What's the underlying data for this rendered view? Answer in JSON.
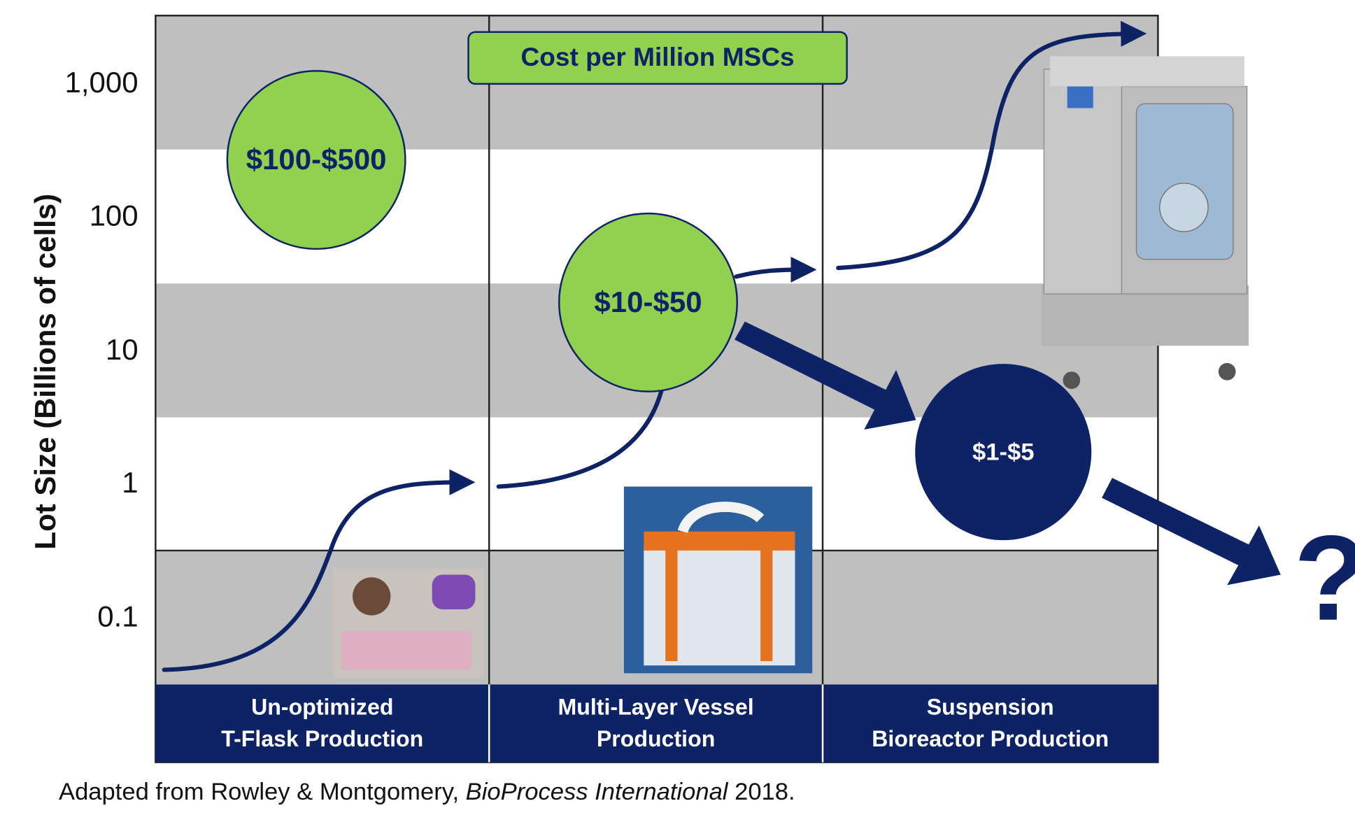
{
  "title": "Cost per Million MSCs",
  "y_axis": {
    "label": "Lot Size (Billions of cells)",
    "ticks": [
      "1,000",
      "100",
      "10",
      "1",
      "0.1"
    ]
  },
  "bubbles": [
    {
      "label": "$100-$500"
    },
    {
      "label": "$10-$50"
    },
    {
      "label": "$1-$5"
    }
  ],
  "columns": [
    {
      "lines": [
        "Un-optimized",
        "T-Flask Production"
      ]
    },
    {
      "lines": [
        "Multi-Layer Vessel",
        "Production"
      ]
    },
    {
      "lines": [
        "Suspension",
        "Bioreactor Production"
      ]
    }
  ],
  "question_mark": "?",
  "caption": {
    "prefix": "Adapted from Rowley & Montgomery, ",
    "journal": "BioProcess International",
    "suffix": " 2018."
  }
}
